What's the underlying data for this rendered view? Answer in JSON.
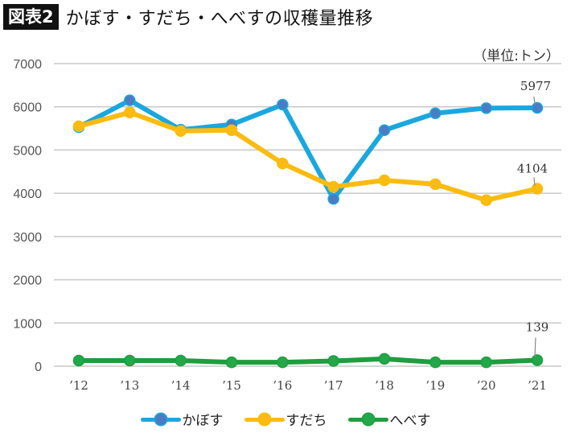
{
  "header": {
    "badge": "図表2",
    "title": "かぼす・すだち・へべすの収穫量推移"
  },
  "chart_data": {
    "type": "line",
    "title": "かぼす・すだち・へべすの収穫量推移",
    "unit_label": "（単位:トン）",
    "xlabel": "",
    "ylabel": "",
    "categories": [
      "’12",
      "’13",
      "’14",
      "’15",
      "’16",
      "’17",
      "’18",
      "’19",
      "’20",
      "’21"
    ],
    "ylim": [
      0,
      7000
    ],
    "yticks": [
      "0",
      "1000",
      "2000",
      "3000",
      "4000",
      "5000",
      "6000",
      "7000"
    ],
    "ytick_values": [
      0,
      1000,
      2000,
      3000,
      4000,
      5000,
      6000,
      7000
    ],
    "grid": true,
    "legend_position": "bottom",
    "series": [
      {
        "name": "かぼす",
        "color": "#1aa7e0",
        "marker_color": "#4a7cc4",
        "values": [
          5530,
          6150,
          5470,
          5590,
          6050,
          3870,
          5460,
          5850,
          5970,
          5977
        ],
        "end_label": "5977"
      },
      {
        "name": "すだち",
        "color": "#fbbb10",
        "marker_color": "#fbbb10",
        "values": [
          5550,
          5870,
          5440,
          5460,
          4690,
          4150,
          4300,
          4210,
          3840,
          4104
        ],
        "end_label": "4104"
      },
      {
        "name": "へべす",
        "color": "#1e9e3e",
        "marker_color": "#22a84a",
        "values": [
          130,
          130,
          130,
          90,
          90,
          120,
          170,
          90,
          90,
          139
        ],
        "end_label": "139"
      }
    ]
  }
}
